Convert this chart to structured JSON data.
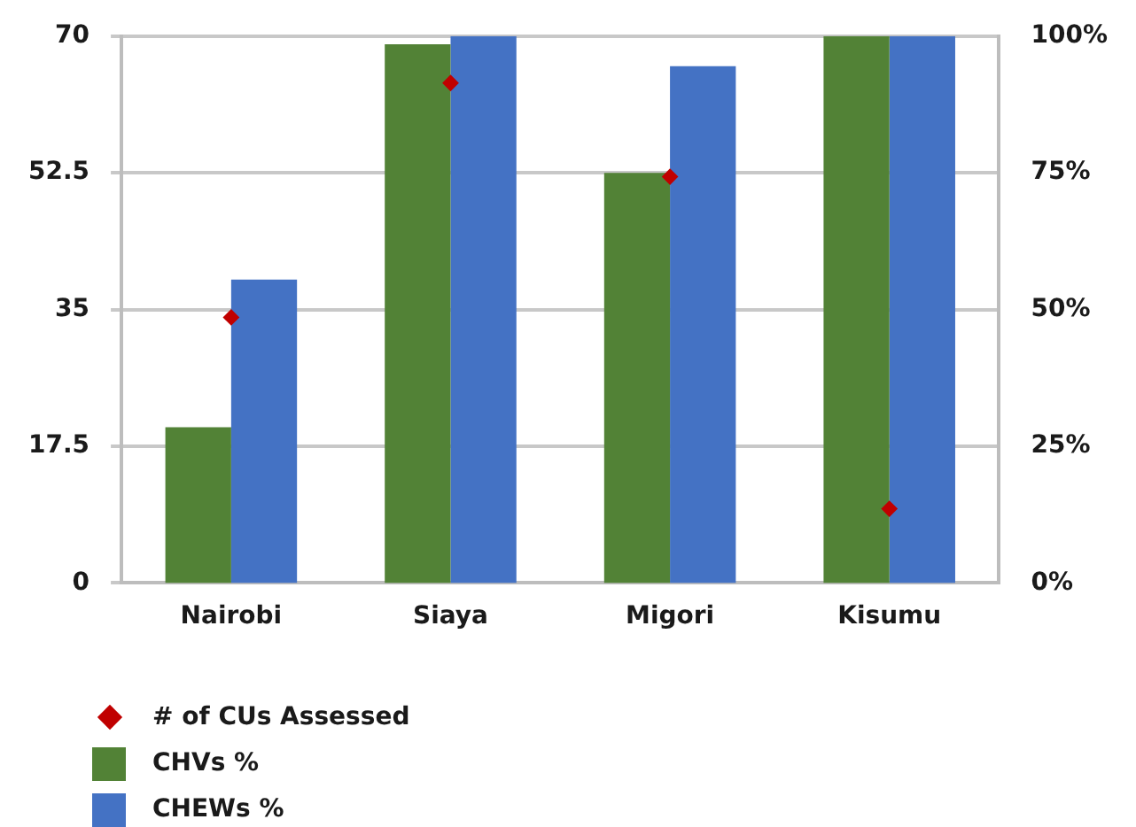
{
  "chart_data": {
    "type": "bar",
    "categories": [
      "Nairobi",
      "Siaya",
      "Migori",
      "Kisumu"
    ],
    "series": [
      {
        "name": "# of CUs Assessed",
        "type": "scatter",
        "marker": "diamond",
        "color": "#c00000",
        "values": [
          34,
          64,
          52,
          9.5
        ]
      },
      {
        "name": "CHVs %",
        "color": "#528236",
        "axis": "y2",
        "values": [
          28.5,
          98.5,
          75,
          100
        ]
      },
      {
        "name": "CHEWs %",
        "color": "#4472c4",
        "axis": "y2",
        "values": [
          55.5,
          100,
          94.5,
          100
        ]
      }
    ],
    "ylim": [
      0,
      70
    ],
    "yticks": [
      0,
      17.5,
      35,
      52.5,
      70
    ],
    "y2lim": [
      0,
      100
    ],
    "y2ticks": [
      {
        "value": 0,
        "label": "0%"
      },
      {
        "value": 25,
        "label": "25%"
      },
      {
        "value": 50,
        "label": "50%"
      },
      {
        "value": 75,
        "label": "75%"
      },
      {
        "value": 100,
        "label": "100%"
      }
    ],
    "grid": "y",
    "legend": "bottom"
  }
}
